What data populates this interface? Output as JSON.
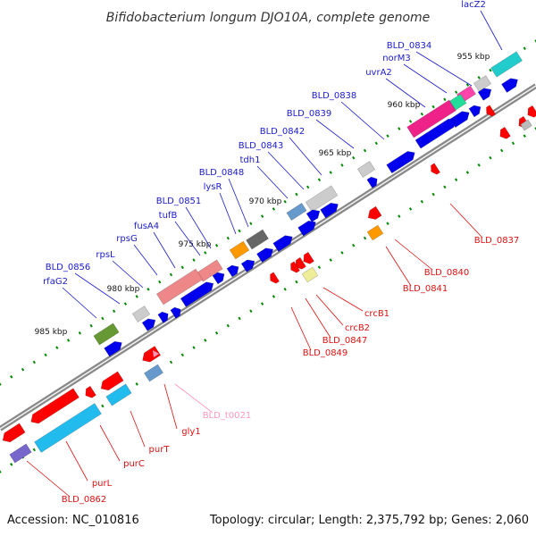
{
  "title": "Bifidobacterium longum DJO10A, complete genome",
  "footer": {
    "accession": "Accession: NC_010816",
    "summary": "Topology: circular; Length: 2,375,792 bp; Genes: 2,060"
  },
  "ticks": [
    "955 kbp",
    "960 kbp",
    "965 kbp",
    "970 kbp",
    "975 kbp",
    "980 kbp",
    "985 kbp"
  ],
  "colors": {
    "forward_label": "#1a1acc",
    "reverse_label": "#dd1111",
    "trna_label": "#ff99bb",
    "cds_forward": "#0000ee",
    "cds_reverse": "#ff0000",
    "backbone": "#888888",
    "tick": "#008800"
  },
  "genes_forward": [
    "lacZ2",
    "BLD_0834",
    "norM3",
    "uvrA2",
    "BLD_0838",
    "BLD_0839",
    "BLD_0842",
    "BLD_0843",
    "tdh1",
    "BLD_0848",
    "lysR",
    "BLD_0851",
    "tufB",
    "fusA4",
    "rpsG",
    "rpsL",
    "BLD_0856",
    "rfaG2"
  ],
  "genes_reverse": [
    "BLD_0837",
    "BLD_0840",
    "BLD_0841",
    "crcB1",
    "crcB2",
    "BLD_0847",
    "BLD_0849",
    "BLD_t0021",
    "gly1",
    "purT",
    "purC",
    "purL",
    "BLD_0862"
  ]
}
